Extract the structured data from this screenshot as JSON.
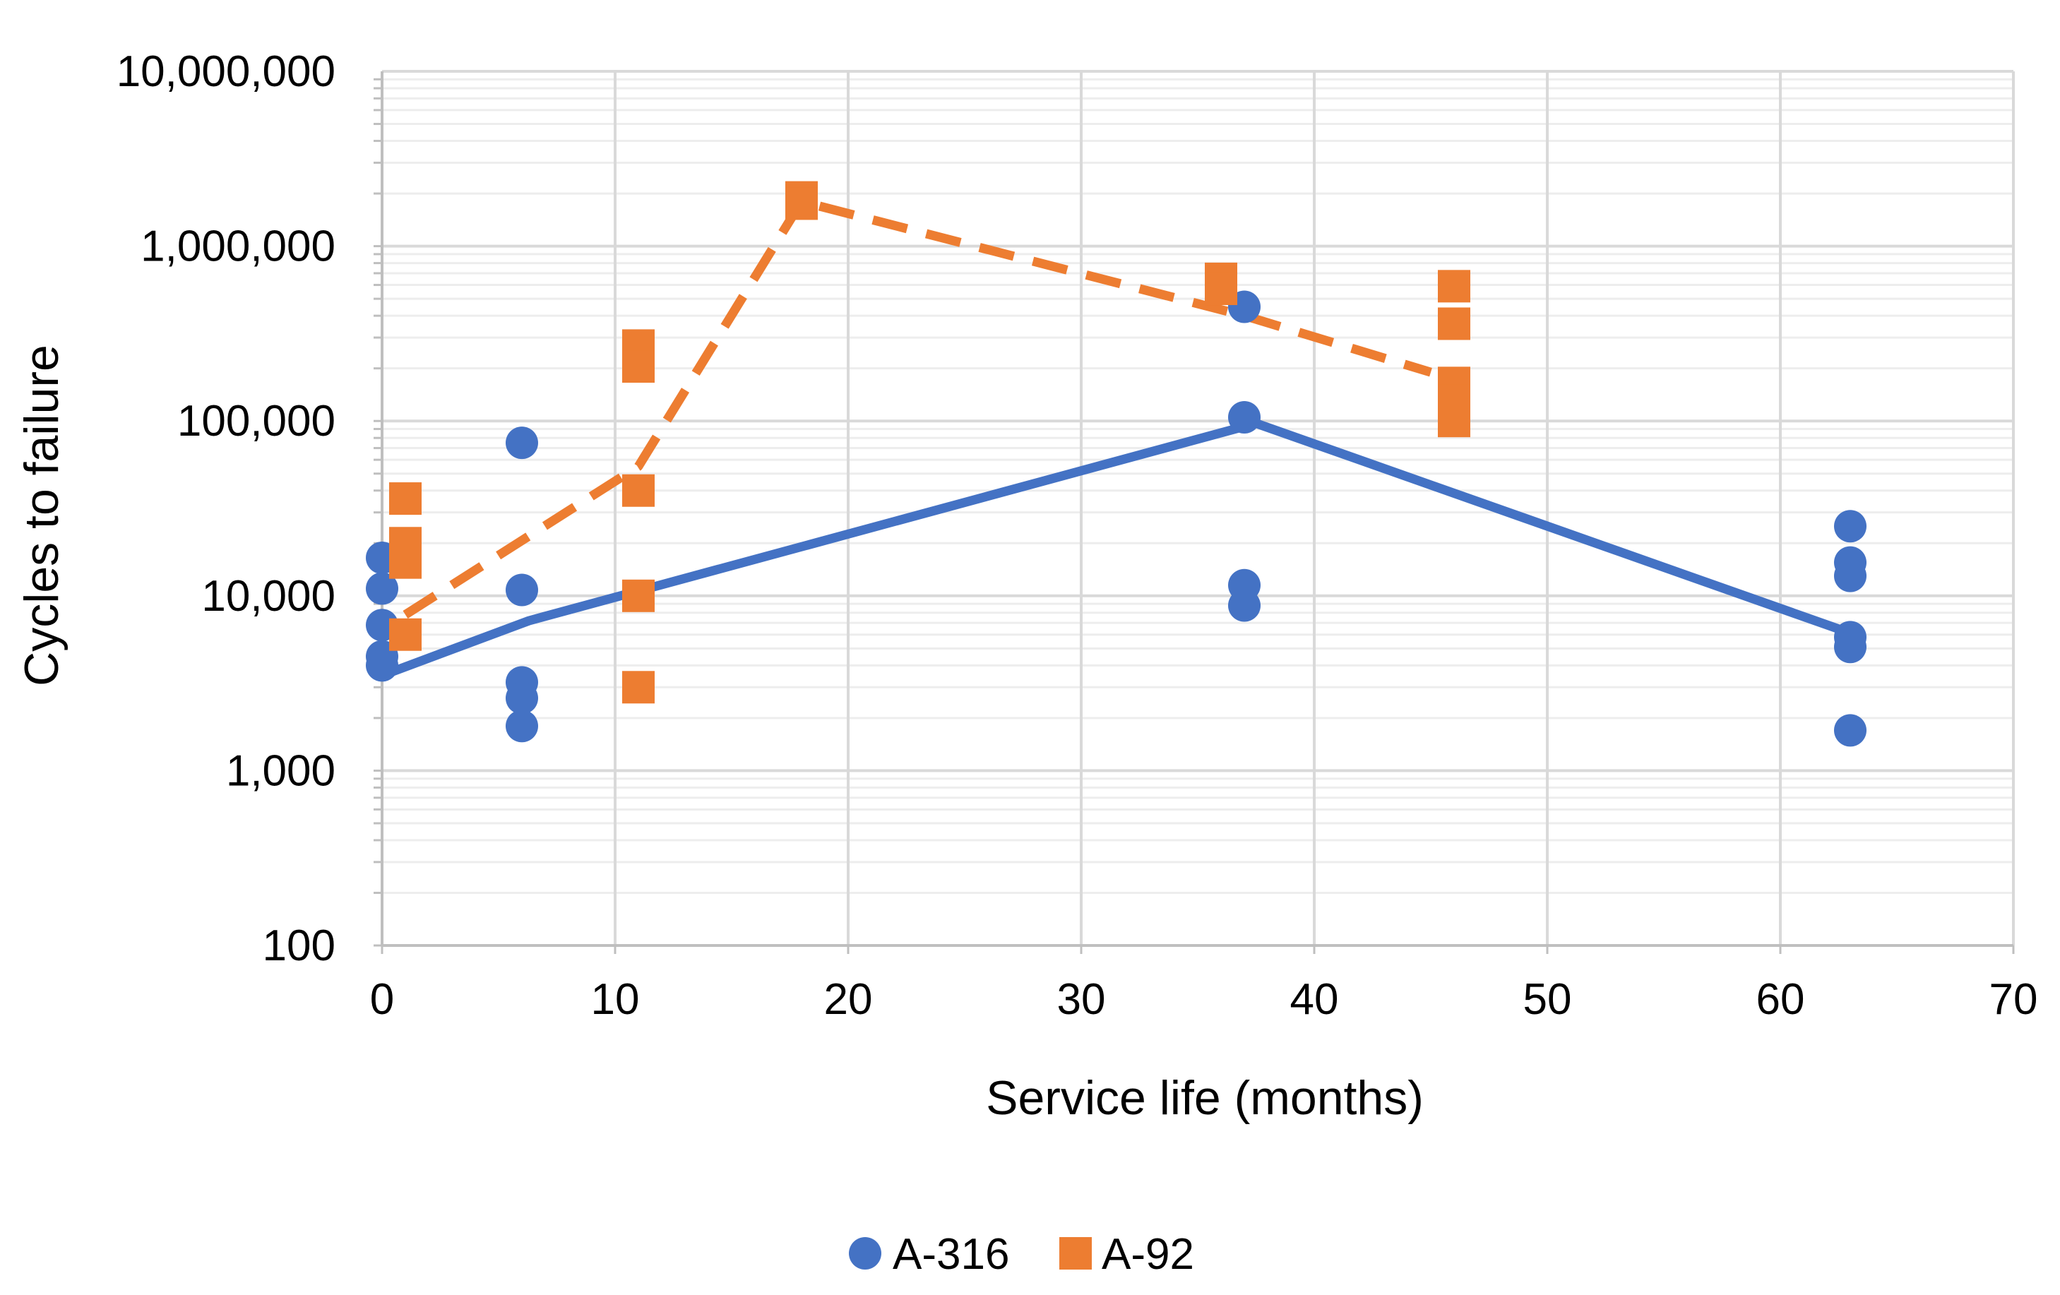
{
  "chart_data": {
    "type": "scatter",
    "title": "",
    "xlabel": "Service life (months)",
    "ylabel": "Cycles to failure",
    "xlim": [
      0,
      70
    ],
    "ylim": [
      100,
      10000000
    ],
    "yscale": "log",
    "x_ticks": [
      0,
      10,
      20,
      30,
      40,
      50,
      60,
      70
    ],
    "x_tick_labels": [
      "0",
      "10",
      "20",
      "30",
      "40",
      "50",
      "60",
      "70"
    ],
    "y_ticks": [
      100,
      1000,
      10000,
      100000,
      1000000,
      10000000
    ],
    "y_tick_labels": [
      "100",
      "1,000",
      "10,000",
      "100,000",
      "1,000,000",
      "10,000,000"
    ],
    "grid": true,
    "legend_position": "bottom-center",
    "series": [
      {
        "name": "A-316",
        "color": "#4472C4",
        "marker": "circle",
        "points": [
          {
            "x": 0,
            "y": 16500
          },
          {
            "x": 0,
            "y": 11000
          },
          {
            "x": 0,
            "y": 6800
          },
          {
            "x": 0,
            "y": 4500
          },
          {
            "x": 0,
            "y": 4000
          },
          {
            "x": 6,
            "y": 75000
          },
          {
            "x": 6,
            "y": 10800
          },
          {
            "x": 6,
            "y": 3200
          },
          {
            "x": 6,
            "y": 2600
          },
          {
            "x": 6,
            "y": 1800
          },
          {
            "x": 37,
            "y": 450000
          },
          {
            "x": 37,
            "y": 105000
          },
          {
            "x": 37,
            "y": 11500
          },
          {
            "x": 37,
            "y": 8800
          },
          {
            "x": 63,
            "y": 25000
          },
          {
            "x": 63,
            "y": 15500
          },
          {
            "x": 63,
            "y": 13000
          },
          {
            "x": 63,
            "y": 5800
          },
          {
            "x": 63,
            "y": 5100
          },
          {
            "x": 63,
            "y": 1700
          }
        ],
        "trend": {
          "style": "solid",
          "points": [
            {
              "x": 0,
              "y": 3500
            },
            {
              "x": 6.3,
              "y": 7200
            },
            {
              "x": 37.5,
              "y": 97000
            },
            {
              "x": 63.5,
              "y": 5800
            }
          ]
        }
      },
      {
        "name": "A-92",
        "color": "#ED7D31",
        "marker": "square",
        "points": [
          {
            "x": 1,
            "y": 36000
          },
          {
            "x": 1,
            "y": 20000
          },
          {
            "x": 1,
            "y": 15500
          },
          {
            "x": 1,
            "y": 6000
          },
          {
            "x": 11,
            "y": 270000
          },
          {
            "x": 11,
            "y": 205000
          },
          {
            "x": 11,
            "y": 40000
          },
          {
            "x": 11,
            "y": 10000
          },
          {
            "x": 11,
            "y": 3000
          },
          {
            "x": 18,
            "y": 1900000
          },
          {
            "x": 18,
            "y": 1750000
          },
          {
            "x": 36,
            "y": 650000
          },
          {
            "x": 36,
            "y": 570000
          },
          {
            "x": 46,
            "y": 590000
          },
          {
            "x": 46,
            "y": 360000
          },
          {
            "x": 46,
            "y": 165000
          },
          {
            "x": 46,
            "y": 130000
          },
          {
            "x": 46,
            "y": 100000
          }
        ],
        "trend": {
          "style": "dashed",
          "points": [
            {
              "x": 1,
              "y": 7800
            },
            {
              "x": 11,
              "y": 55000
            },
            {
              "x": 18,
              "y": 1800000
            },
            {
              "x": 37,
              "y": 400000
            },
            {
              "x": 45,
              "y": 190000
            }
          ]
        }
      }
    ]
  }
}
